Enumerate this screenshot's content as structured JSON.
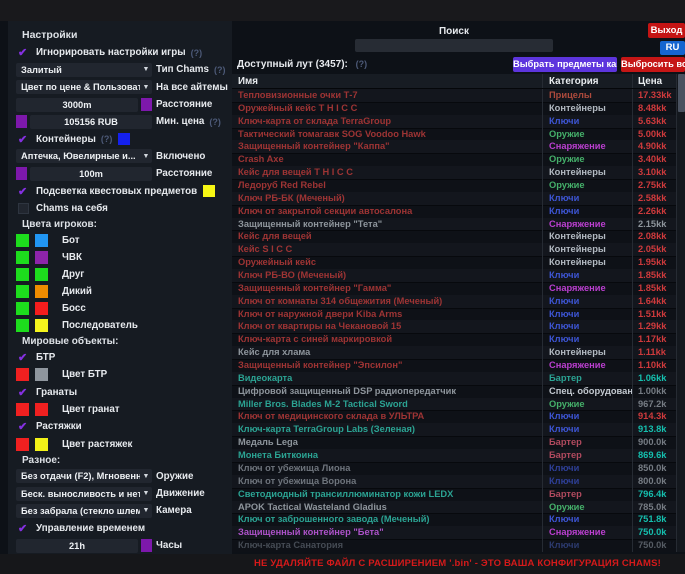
{
  "search": {
    "label": "Поиск",
    "value": ""
  },
  "top_buttons": {
    "exit": "Выход",
    "lang": "RU"
  },
  "footer": {
    "warning": "НЕ УДАЛЯЙТЕ ФАЙЛ С РАСШИРЕНИЕМ '.bin' - ЭТО ВАША КОНФИГУРАЦИЯ CHAMS!"
  },
  "settings": {
    "title": "Настройки",
    "rows_top": [
      {
        "type": "check",
        "label": "Игнорировать настройки игры",
        "help": "(?)",
        "checked": true
      },
      {
        "type": "dropdown",
        "value": "Залитый",
        "label": "Тип Chams",
        "help": "(?)"
      },
      {
        "type": "dropdown",
        "value": "Цвет по цене & Пользователь",
        "label": "На все айтемы"
      },
      {
        "type": "input",
        "value": "3000m",
        "label": "Расстояние",
        "swatch": "#7d18ab",
        "swatch_pos": "right"
      },
      {
        "type": "input",
        "value": "105156 RUB",
        "label": "Мин. цена",
        "help": "(?)",
        "swatch": "#7d18ab",
        "swatch_pos": "left"
      },
      {
        "type": "check",
        "label": "Контейнеры",
        "help": "(?)",
        "checked": true,
        "swatch": "#1420ee"
      },
      {
        "type": "dropdown",
        "value": "Аптечка, Ювелирные и...",
        "label": "Включено"
      },
      {
        "type": "input",
        "value": "100m",
        "label": "Расстояние",
        "swatch": "#7d18ab",
        "swatch_pos": "left"
      },
      {
        "type": "check",
        "label": "Подсветка квестовых предметов",
        "checked": true,
        "swatch": "#f7f714"
      },
      {
        "type": "check",
        "label": "Chams на себя",
        "checked": false
      }
    ],
    "player_colors": {
      "title": "Цвета игроков:",
      "rows": [
        {
          "label": "Бот",
          "c1": "#1ddd1d",
          "c2": "#2196f3"
        },
        {
          "label": "ЧВК",
          "c1": "#1ddd1d",
          "c2": "#8e24aa"
        },
        {
          "label": "Друг",
          "c1": "#1ddd1d",
          "c2": "#1ddd1d"
        },
        {
          "label": "Дикий",
          "c1": "#1ddd1d",
          "c2": "#f08c00"
        },
        {
          "label": "Босс",
          "c1": "#1ddd1d",
          "c2": "#f51d1d"
        },
        {
          "label": "Последователь",
          "c1": "#1ddd1d",
          "c2": "#f5f51d"
        }
      ]
    },
    "world_objects": {
      "title": "Мировые объекты:",
      "rows": [
        {
          "type": "check",
          "label": "БТР",
          "checked": true
        },
        {
          "type": "colors",
          "label": "Цвет БТР",
          "c1": "#f02020",
          "c2": "#8f969e"
        },
        {
          "type": "check",
          "label": "Гранаты",
          "checked": true
        },
        {
          "type": "colors",
          "label": "Цвет гранат",
          "c1": "#f02020",
          "c2": "#f02020"
        },
        {
          "type": "check",
          "label": "Растяжки",
          "checked": true
        },
        {
          "type": "colors",
          "label": "Цвет растяжек",
          "c1": "#f02020",
          "c2": "#f2f218"
        }
      ]
    },
    "misc": {
      "title": "Разное:",
      "rows": [
        {
          "type": "dropdown",
          "value": "Без отдачи (F2), Мгновенное п",
          "label": "Оружие"
        },
        {
          "type": "dropdown",
          "value": "Беск. выносливость и нет уста",
          "label": "Движение"
        },
        {
          "type": "dropdown",
          "value": "Без забрала (стекло шлема)",
          "label": "Камера"
        },
        {
          "type": "check",
          "label": "Управление временем",
          "checked": true
        },
        {
          "type": "input",
          "value": "21h",
          "label": "Часы",
          "swatch": "#7d18ab",
          "swatch_pos": "right"
        }
      ]
    }
  },
  "loot": {
    "count_label": "Доступный лут (3457):",
    "help": "(?)",
    "kappa_button": "Выбрать предметы каппа",
    "drop_button": "Выбросить все",
    "columns": [
      "Имя",
      "Категория",
      "Цена"
    ],
    "rows": [
      {
        "name": "Тепловизионные очки Т-7",
        "cat": "Прицелы",
        "price": "17.33kk",
        "nc": "#9e3434",
        "cc": "#ad4a3c",
        "pc": "#cf3a3c"
      },
      {
        "name": "Оружейный кейс T H I C C",
        "cat": "Контейнеры",
        "price": "8.48kk",
        "nc": "#9e3434",
        "cc": "#b3bac2",
        "pc": "#cf3a3c"
      },
      {
        "name": "Ключ-карта от склада TerraGroup",
        "cat": "Ключи",
        "price": "5.63kk",
        "nc": "#9e3434",
        "cc": "#3d55d4",
        "pc": "#cf3a3c"
      },
      {
        "name": "Тактический томагавк SOG Voodoo Hawk",
        "cat": "Оружие",
        "price": "5.00kk",
        "nc": "#9e3434",
        "cc": "#45b06a",
        "pc": "#cf3a3c"
      },
      {
        "name": "Защищенный контейнер \"Каппа\"",
        "cat": "Снаряжение",
        "price": "4.90kk",
        "nc": "#9e3434",
        "cc": "#bb3fd0",
        "pc": "#cf3a3c"
      },
      {
        "name": "Crash Axe",
        "cat": "Оружие",
        "price": "3.40kk",
        "nc": "#9e3434",
        "cc": "#45b06a",
        "pc": "#cf3a3c"
      },
      {
        "name": "Кейс для вещей T H I C C",
        "cat": "Контейнеры",
        "price": "3.10kk",
        "nc": "#9e3434",
        "cc": "#b3bac2",
        "pc": "#cf3a3c"
      },
      {
        "name": "Ледоруб Red Rebel",
        "cat": "Оружие",
        "price": "2.75kk",
        "nc": "#9e3434",
        "cc": "#45b06a",
        "pc": "#cf3a3c"
      },
      {
        "name": "Ключ РБ-БК (Меченый)",
        "cat": "Ключи",
        "price": "2.58kk",
        "nc": "#9e3434",
        "cc": "#3d55d4",
        "pc": "#cf3a3c"
      },
      {
        "name": "Ключ от закрытой секции автосалона",
        "cat": "Ключи",
        "price": "2.26kk",
        "nc": "#9e3434",
        "cc": "#3d55d4",
        "pc": "#cf3a3c"
      },
      {
        "name": "Защищенный контейнер \"Тета\"",
        "cat": "Снаряжение",
        "price": "2.15kk",
        "nc": "#8e959c",
        "cc": "#bb3fd0",
        "pc": "#8e959c"
      },
      {
        "name": "Кейс для вещей",
        "cat": "Контейнеры",
        "price": "2.08kk",
        "nc": "#9e3434",
        "cc": "#b3bac2",
        "pc": "#cf3a3c"
      },
      {
        "name": "Кейс S I C C",
        "cat": "Контейнеры",
        "price": "2.05kk",
        "nc": "#9e3434",
        "cc": "#b3bac2",
        "pc": "#cf3a3c"
      },
      {
        "name": "Оружейный кейс",
        "cat": "Контейнеры",
        "price": "1.95kk",
        "nc": "#9e3434",
        "cc": "#b3bac2",
        "pc": "#cf3a3c"
      },
      {
        "name": "Ключ РБ-ВО (Меченый)",
        "cat": "Ключи",
        "price": "1.85kk",
        "nc": "#9e3434",
        "cc": "#3d55d4",
        "pc": "#cf3a3c"
      },
      {
        "name": "Защищенный контейнер \"Гамма\"",
        "cat": "Снаряжение",
        "price": "1.85kk",
        "nc": "#9e3434",
        "cc": "#bb3fd0",
        "pc": "#cf3a3c"
      },
      {
        "name": "Ключ от комнаты 314 общежития (Меченый)",
        "cat": "Ключи",
        "price": "1.64kk",
        "nc": "#9e3434",
        "cc": "#3d55d4",
        "pc": "#cf3a3c"
      },
      {
        "name": "Ключ от наружной двери Kiba Arms",
        "cat": "Ключи",
        "price": "1.51kk",
        "nc": "#9e3434",
        "cc": "#3d55d4",
        "pc": "#cf3a3c"
      },
      {
        "name": "Ключ от квартиры на Чекановой 15",
        "cat": "Ключи",
        "price": "1.29kk",
        "nc": "#9e3434",
        "cc": "#3d55d4",
        "pc": "#cf3a3c"
      },
      {
        "name": "Ключ-карта с синей маркировкой",
        "cat": "Ключи",
        "price": "1.17kk",
        "nc": "#9e3434",
        "cc": "#3d55d4",
        "pc": "#cf3a3c"
      },
      {
        "name": "Кейс для хлама",
        "cat": "Контейнеры",
        "price": "1.11kk",
        "nc": "#8e959c",
        "cc": "#b3bac2",
        "pc": "#cf3a3c"
      },
      {
        "name": "Защищенный контейнер \"Эпсилон\"",
        "cat": "Снаряжение",
        "price": "1.10kk",
        "nc": "#9e3434",
        "cc": "#bb3fd0",
        "pc": "#cf3a3c"
      },
      {
        "name": "Видеокарта",
        "cat": "Бартер",
        "price": "1.06kk",
        "nc": "#2ba393",
        "cc": "#2ba393",
        "pc": "#15bfae"
      },
      {
        "name": "Цифровой защищенный DSP радиопередатчик",
        "cat": "Спец. оборудование",
        "price": "1.00kk",
        "nc": "#8e959c",
        "cc": "#c3c9d0",
        "pc": "#767c84"
      },
      {
        "name": "Miller Bros. Blades M-2 Tactical Sword",
        "cat": "Оружие",
        "price": "967.2k",
        "nc": "#2ba393",
        "cc": "#45b06a",
        "pc": "#767c84"
      },
      {
        "name": "Ключ от медицинского склада в УЛЬТРА",
        "cat": "Ключи",
        "price": "914.3k",
        "nc": "#9e3434",
        "cc": "#3d55d4",
        "pc": "#cf3a3c"
      },
      {
        "name": "Ключ-карта TerraGroup Labs (Зеленая)",
        "cat": "Ключи",
        "price": "913.8k",
        "nc": "#2ba393",
        "cc": "#3d55d4",
        "pc": "#15bfae"
      },
      {
        "name": "Медаль Lega",
        "cat": "Бартер",
        "price": "900.0k",
        "nc": "#8e959c",
        "cc": "#b04a5e",
        "pc": "#767c84"
      },
      {
        "name": "Монета Биткоина",
        "cat": "Бартер",
        "price": "869.6k",
        "nc": "#2ba393",
        "cc": "#b04a5e",
        "pc": "#15bfae"
      },
      {
        "name": "Ключ от убежища Лиона",
        "cat": "Ключи",
        "price": "850.0k",
        "nc": "#6e747c",
        "cc": "#2e3f97",
        "pc": "#767c84"
      },
      {
        "name": "Ключ от убежища Ворона",
        "cat": "Ключи",
        "price": "800.0k",
        "nc": "#6e747c",
        "cc": "#2e3f97",
        "pc": "#767c84"
      },
      {
        "name": "Светодиодный трансиллюминатор кожи LEDX",
        "cat": "Бартер",
        "price": "796.4k",
        "nc": "#2ba393",
        "cc": "#b04a5e",
        "pc": "#15bfae"
      },
      {
        "name": "APOK Tactical Wasteland Gladius",
        "cat": "Оружие",
        "price": "785.0k",
        "nc": "#8e959c",
        "cc": "#45b06a",
        "pc": "#767c84"
      },
      {
        "name": "Ключ от заброшенного завода (Меченый)",
        "cat": "Ключи",
        "price": "751.8k",
        "nc": "#2ba393",
        "cc": "#3d55d4",
        "pc": "#15bfae"
      },
      {
        "name": "Защищенный контейнер \"Бета\"",
        "cat": "Снаряжение",
        "price": "750.0k",
        "nc": "#ad52c9",
        "cc": "#bb3fd0",
        "pc": "#15bfae"
      },
      {
        "name": "Ключ-карта Санатория",
        "cat": "Ключи",
        "price": "750.0k",
        "nc": "#454b54",
        "cc": "#2c3a6e",
        "pc": "#565c64"
      }
    ]
  }
}
